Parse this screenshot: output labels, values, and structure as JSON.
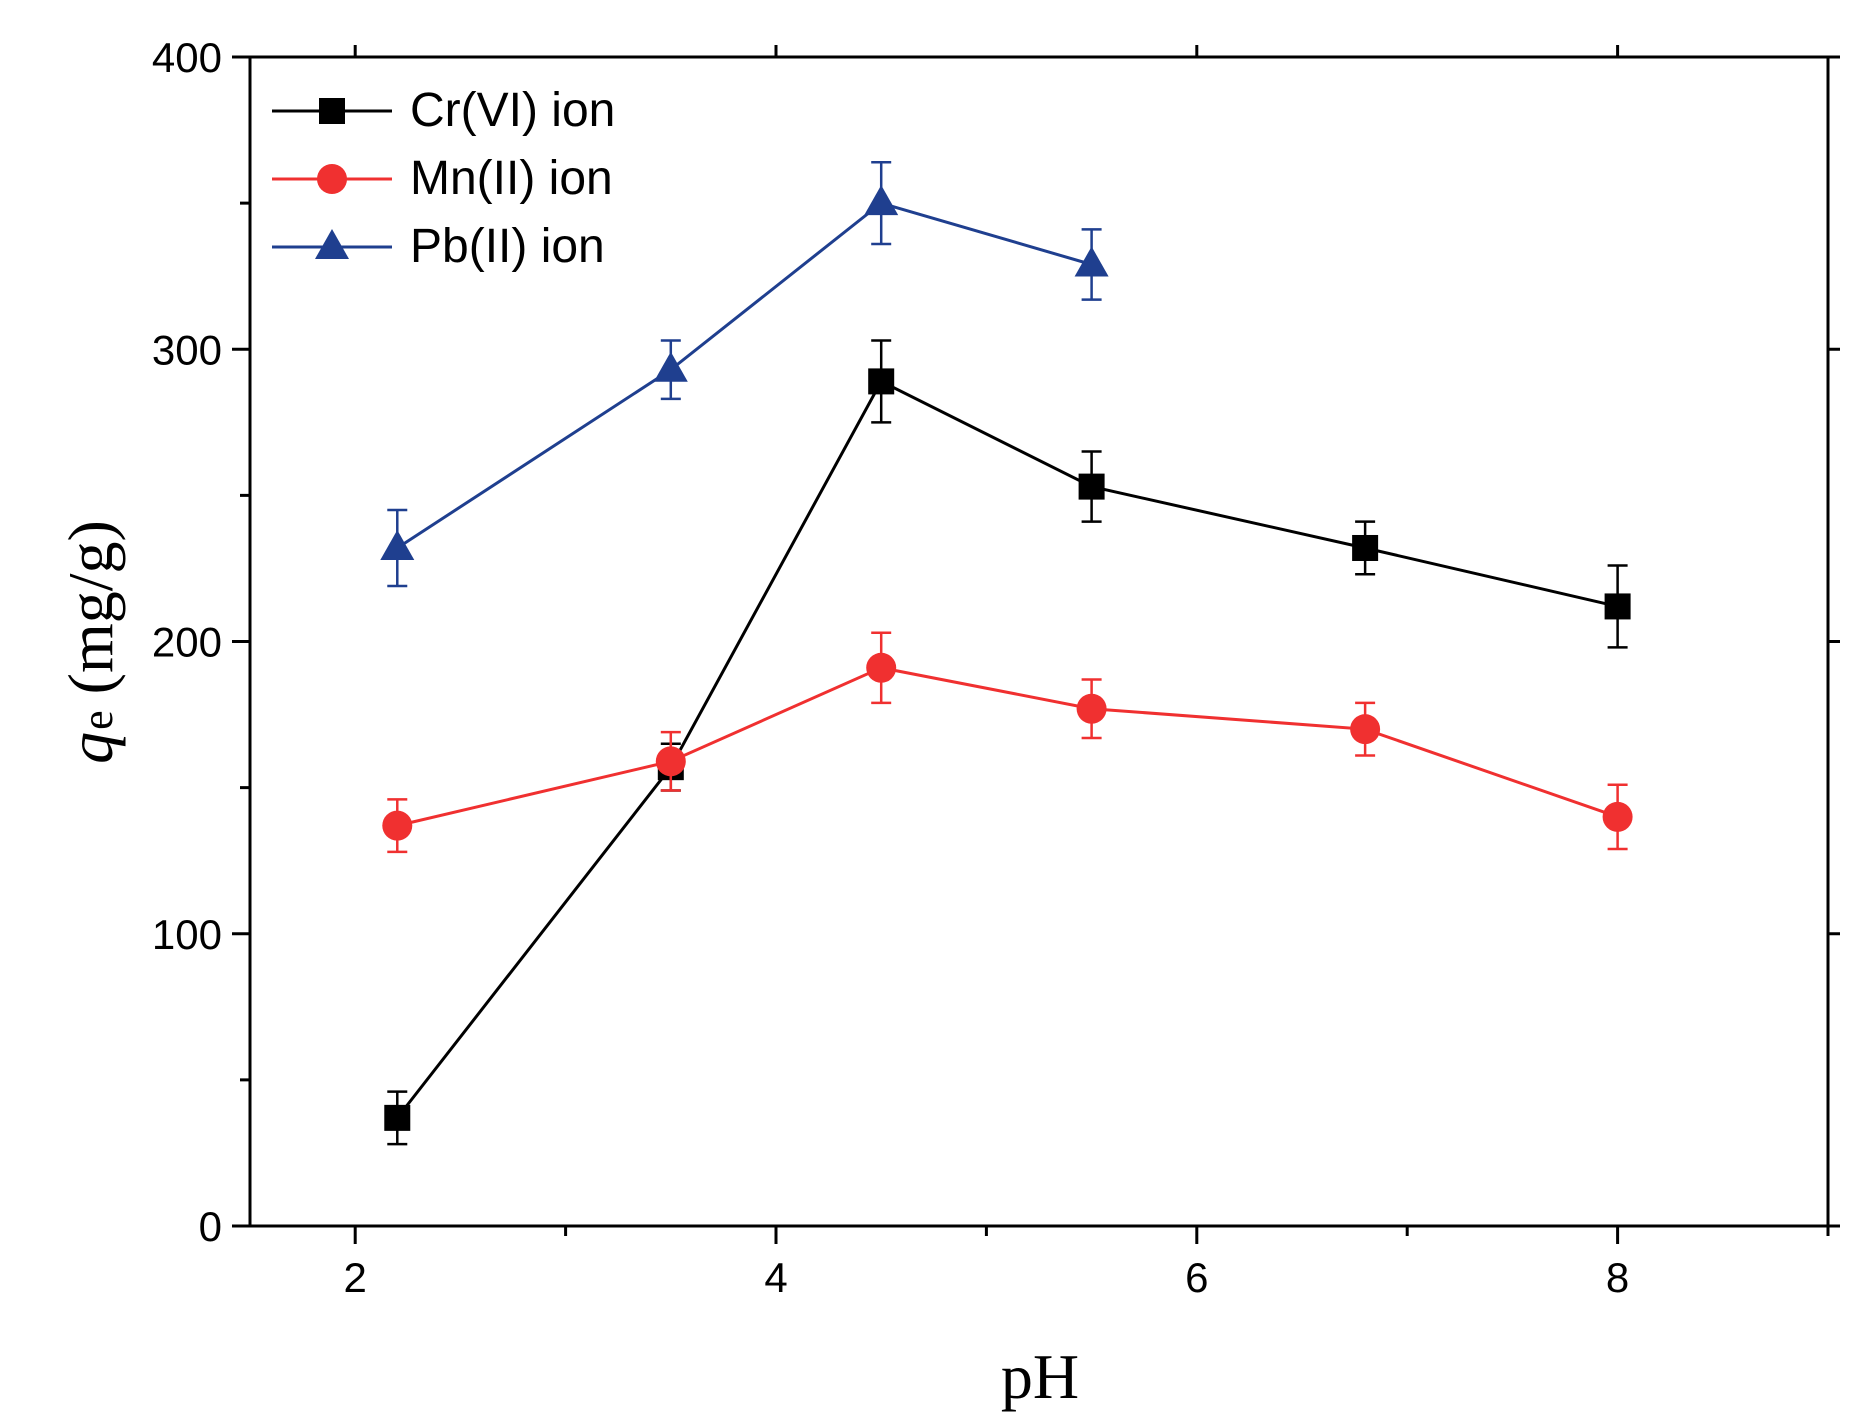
{
  "chart_data": {
    "type": "line",
    "title": "",
    "xlabel": "pH",
    "ylabel": {
      "symbol": "q",
      "subscript": "e",
      "unit": "(mg/g)"
    },
    "xlim": [
      1.5,
      9
    ],
    "ylim": [
      0,
      400
    ],
    "xticks": [
      2,
      4,
      6,
      8
    ],
    "xminor": [
      3,
      5,
      7,
      9
    ],
    "yticks": [
      0,
      100,
      200,
      300,
      400
    ],
    "yminor": [
      50,
      150,
      250,
      350
    ],
    "legend_position": "top-left",
    "series": [
      {
        "name": "Cr(VI) ion",
        "color": "#000000",
        "marker": "square",
        "x": [
          2.2,
          3.5,
          4.5,
          5.5,
          6.8,
          8.0
        ],
        "y": [
          37,
          157,
          289,
          253,
          232,
          212
        ],
        "err": [
          9,
          8,
          14,
          12,
          9,
          14
        ]
      },
      {
        "name": "Mn(II) ion",
        "color": "#f03030",
        "marker": "circle",
        "x": [
          2.2,
          3.5,
          4.5,
          5.5,
          6.8,
          8.0
        ],
        "y": [
          137,
          159,
          191,
          177,
          170,
          140
        ],
        "err": [
          9,
          10,
          12,
          10,
          9,
          11
        ]
      },
      {
        "name": "Pb(II) ion",
        "color": "#1f3f8f",
        "marker": "triangle",
        "x": [
          2.2,
          3.5,
          4.5,
          5.5
        ],
        "y": [
          232,
          293,
          350,
          329
        ],
        "err": [
          13,
          10,
          14,
          12
        ]
      }
    ]
  }
}
